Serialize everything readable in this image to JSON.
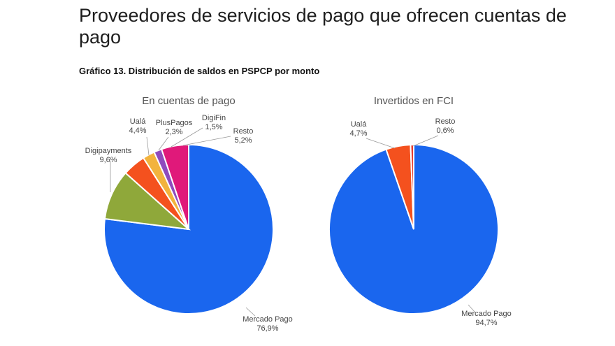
{
  "page": {
    "title": "Proveedores de servicios de pago que ofrecen cuentas de pago",
    "subtitle": "Gráfico 13. Distribución de saldos en PSPCP por monto"
  },
  "colors": {
    "Mercado Pago": "#1a66ee",
    "Digipayments": "#8fa83a",
    "Ualá": "#f4511e",
    "PlusPagos": "#f2b33d",
    "DigiFin": "#8e4bbd",
    "Resto": "#e0197a",
    "Resto_fci": "#e63b2e"
  },
  "chart_data": [
    {
      "type": "pie",
      "title": "En cuentas de pago",
      "series": [
        {
          "name": "Mercado Pago",
          "value": 76.9,
          "label": "76,9%"
        },
        {
          "name": "Digipayments",
          "value": 9.6,
          "label": "9,6%"
        },
        {
          "name": "Ualá",
          "value": 4.4,
          "label": "4,4%"
        },
        {
          "name": "PlusPagos",
          "value": 2.3,
          "label": "2,3%"
        },
        {
          "name": "DigiFin",
          "value": 1.5,
          "label": "1,5%"
        },
        {
          "name": "Resto",
          "value": 5.2,
          "label": "5,2%"
        }
      ]
    },
    {
      "type": "pie",
      "title": "Invertidos en FCI",
      "series": [
        {
          "name": "Mercado Pago",
          "value": 94.7,
          "label": "94,7%"
        },
        {
          "name": "Ualá",
          "value": 4.7,
          "label": "4,7%"
        },
        {
          "name": "Resto",
          "value": 0.6,
          "label": "0,6%"
        }
      ]
    }
  ]
}
